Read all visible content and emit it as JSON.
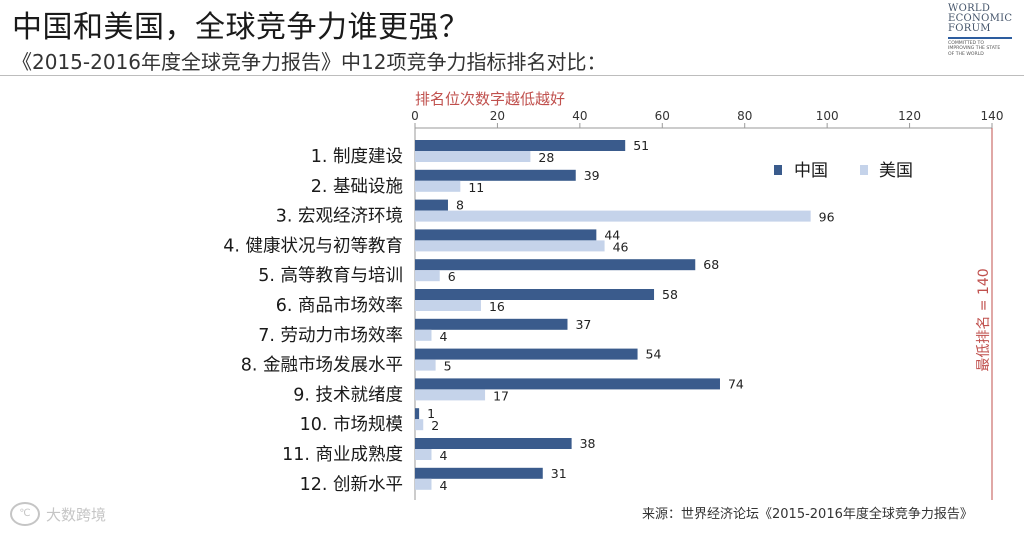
{
  "title": "中国和美国，全球竞争力谁更强？",
  "subtitle": "《2015-2016年度全球竞争力报告》中12项竞争力指标排名对比：",
  "logo": {
    "lines": [
      "WORLD",
      "ECONOMIC",
      "FORUM"
    ],
    "tagline": [
      "COMMITTED TO",
      "IMPROVING THE STATE",
      "OF THE WORLD"
    ]
  },
  "axis_note": "排名位次数字越低越好",
  "max_rank_label": "最低排名 = 140",
  "source": "来源：世界经济论坛《2015-2016年度全球竞争力报告》",
  "watermark": "大数跨境",
  "colors": {
    "china": "#3a5b8c",
    "usa": "#c5d3ea",
    "accent_red": "#c0504d",
    "grid_right": "#c0504d"
  },
  "chart_data": {
    "type": "bar",
    "orientation": "horizontal",
    "axis_position": "top",
    "xlim": [
      0,
      140
    ],
    "xticks": [
      0,
      20,
      40,
      60,
      80,
      100,
      120,
      140
    ],
    "categories": [
      "1. 制度建设",
      "2. 基础设施",
      "3. 宏观经济环境",
      "4. 健康状况与初等教育",
      "5. 高等教育与培训",
      "6. 商品市场效率",
      "7. 劳动力市场效率",
      "8. 金融市场发展水平",
      "9. 技术就绪度",
      "10. 市场规模",
      "11. 商业成熟度",
      "12. 创新水平"
    ],
    "series": [
      {
        "name": "中国",
        "values": [
          51,
          39,
          8,
          44,
          68,
          58,
          37,
          54,
          74,
          1,
          38,
          31
        ]
      },
      {
        "name": "美国",
        "values": [
          28,
          11,
          96,
          46,
          6,
          16,
          4,
          5,
          17,
          2,
          4,
          4
        ]
      }
    ],
    "legend_position": "top-right",
    "grid": false
  }
}
